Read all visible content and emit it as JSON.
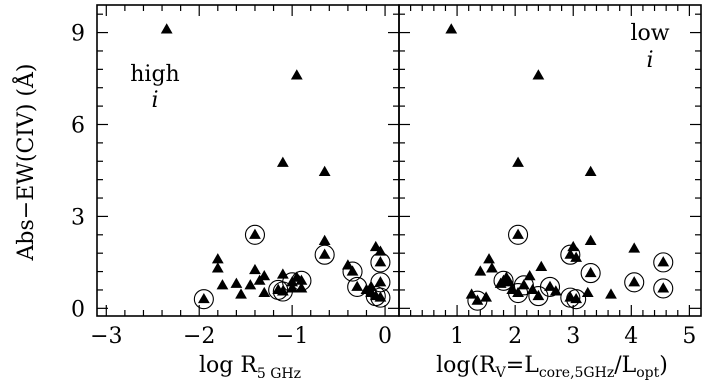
{
  "chart_data": [
    {
      "type": "scatter",
      "ylabel": "Abs−EW(CIV) (Å)",
      "xlabel": {
        "main": "log  R",
        "sub": "5 GHz"
      },
      "xlim": [
        -3.1,
        0.15
      ],
      "ylim": [
        -0.25,
        9.9
      ],
      "xticks": [
        -3,
        -2,
        -1,
        0
      ],
      "xtick_labels": [
        "−3",
        "−2",
        "−1",
        "0"
      ],
      "yticks": [
        0,
        3,
        6,
        9
      ],
      "ytick_labels": [
        "0",
        "3",
        "6",
        "9"
      ],
      "annotation": {
        "line1": "high",
        "line2": "i"
      },
      "points": [
        {
          "x": -2.35,
          "y": 9.1,
          "circled": false
        },
        {
          "x": -0.95,
          "y": 7.6,
          "circled": false
        },
        {
          "x": -1.1,
          "y": 4.75,
          "circled": false
        },
        {
          "x": -0.65,
          "y": 4.45,
          "circled": false
        },
        {
          "x": -1.4,
          "y": 2.4,
          "circled": true
        },
        {
          "x": -0.65,
          "y": 2.2,
          "circled": false
        },
        {
          "x": -0.1,
          "y": 2.0,
          "circled": false
        },
        {
          "x": -0.05,
          "y": 1.85,
          "circled": false
        },
        {
          "x": -0.65,
          "y": 1.75,
          "circled": true
        },
        {
          "x": -1.8,
          "y": 1.6,
          "circled": false
        },
        {
          "x": -0.05,
          "y": 1.5,
          "circled": true
        },
        {
          "x": -0.4,
          "y": 1.4,
          "circled": false
        },
        {
          "x": -1.8,
          "y": 1.3,
          "circled": false
        },
        {
          "x": -1.4,
          "y": 1.25,
          "circled": false
        },
        {
          "x": -0.35,
          "y": 1.2,
          "circled": true
        },
        {
          "x": -1.1,
          "y": 1.1,
          "circled": false
        },
        {
          "x": -1.3,
          "y": 1.05,
          "circled": false
        },
        {
          "x": -0.95,
          "y": 1.0,
          "circled": false
        },
        {
          "x": -1.35,
          "y": 0.9,
          "circled": false
        },
        {
          "x": -0.9,
          "y": 0.9,
          "circled": true
        },
        {
          "x": -1.0,
          "y": 0.85,
          "circled": true
        },
        {
          "x": -0.05,
          "y": 0.85,
          "circled": true
        },
        {
          "x": -1.6,
          "y": 0.8,
          "circled": false
        },
        {
          "x": -1.45,
          "y": 0.75,
          "circled": false
        },
        {
          "x": -1.75,
          "y": 0.75,
          "circled": false
        },
        {
          "x": -0.3,
          "y": 0.7,
          "circled": true
        },
        {
          "x": -0.15,
          "y": 0.7,
          "circled": false
        },
        {
          "x": -1.0,
          "y": 0.65,
          "circled": false
        },
        {
          "x": -0.9,
          "y": 0.65,
          "circled": false
        },
        {
          "x": -1.15,
          "y": 0.6,
          "circled": true
        },
        {
          "x": -0.2,
          "y": 0.6,
          "circled": false
        },
        {
          "x": -1.1,
          "y": 0.55,
          "circled": true
        },
        {
          "x": -0.15,
          "y": 0.5,
          "circled": false
        },
        {
          "x": -1.3,
          "y": 0.5,
          "circled": false
        },
        {
          "x": -1.55,
          "y": 0.45,
          "circled": false
        },
        {
          "x": -0.1,
          "y": 0.4,
          "circled": true
        },
        {
          "x": -0.05,
          "y": 0.35,
          "circled": true
        },
        {
          "x": -1.95,
          "y": 0.3,
          "circled": true
        }
      ]
    },
    {
      "type": "scatter",
      "xlabel": {
        "pre": "log(R",
        "sub1": "V",
        "mid": "=L",
        "sub2": "core,5GHz",
        "mid2": "/L",
        "sub3": "opt",
        "post": ")"
      },
      "xlim": [
        0,
        5.2
      ],
      "ylim": [
        -0.25,
        9.9
      ],
      "xticks": [
        1,
        2,
        3,
        4,
        5
      ],
      "xtick_labels": [
        "1",
        "2",
        "3",
        "4",
        "5"
      ],
      "yticks": [
        0,
        3,
        6,
        9
      ],
      "annotation": {
        "line1": "low",
        "line2": "i"
      },
      "points": [
        {
          "x": 0.9,
          "y": 9.1,
          "circled": false
        },
        {
          "x": 2.4,
          "y": 7.6,
          "circled": false
        },
        {
          "x": 2.05,
          "y": 4.75,
          "circled": false
        },
        {
          "x": 3.3,
          "y": 4.45,
          "circled": false
        },
        {
          "x": 2.05,
          "y": 2.4,
          "circled": true
        },
        {
          "x": 3.3,
          "y": 2.2,
          "circled": false
        },
        {
          "x": 3.0,
          "y": 2.0,
          "circled": false
        },
        {
          "x": 4.05,
          "y": 1.95,
          "circled": false
        },
        {
          "x": 2.95,
          "y": 1.75,
          "circled": true
        },
        {
          "x": 3.05,
          "y": 1.65,
          "circled": false
        },
        {
          "x": 1.55,
          "y": 1.6,
          "circled": false
        },
        {
          "x": 4.55,
          "y": 1.5,
          "circled": true
        },
        {
          "x": 1.6,
          "y": 1.3,
          "circled": false
        },
        {
          "x": 2.45,
          "y": 1.35,
          "circled": false
        },
        {
          "x": 1.4,
          "y": 1.2,
          "circled": false
        },
        {
          "x": 3.3,
          "y": 1.15,
          "circled": true
        },
        {
          "x": 1.85,
          "y": 1.0,
          "circled": false
        },
        {
          "x": 2.25,
          "y": 1.05,
          "circled": false
        },
        {
          "x": 1.8,
          "y": 0.9,
          "circled": true
        },
        {
          "x": 1.9,
          "y": 0.85,
          "circled": false
        },
        {
          "x": 4.05,
          "y": 0.85,
          "circled": true
        },
        {
          "x": 1.75,
          "y": 0.8,
          "circled": false
        },
        {
          "x": 2.15,
          "y": 0.75,
          "circled": true
        },
        {
          "x": 2.6,
          "y": 0.7,
          "circled": true
        },
        {
          "x": 4.55,
          "y": 0.65,
          "circled": true
        },
        {
          "x": 1.95,
          "y": 0.6,
          "circled": false
        },
        {
          "x": 2.3,
          "y": 0.6,
          "circled": false
        },
        {
          "x": 2.7,
          "y": 0.55,
          "circled": false
        },
        {
          "x": 3.25,
          "y": 0.5,
          "circled": false
        },
        {
          "x": 2.05,
          "y": 0.5,
          "circled": true
        },
        {
          "x": 1.25,
          "y": 0.45,
          "circled": false
        },
        {
          "x": 3.65,
          "y": 0.45,
          "circled": false
        },
        {
          "x": 2.4,
          "y": 0.4,
          "circled": true
        },
        {
          "x": 1.5,
          "y": 0.35,
          "circled": false
        },
        {
          "x": 2.95,
          "y": 0.35,
          "circled": true
        },
        {
          "x": 3.05,
          "y": 0.3,
          "circled": true
        },
        {
          "x": 1.35,
          "y": 0.25,
          "circled": true
        }
      ]
    }
  ]
}
